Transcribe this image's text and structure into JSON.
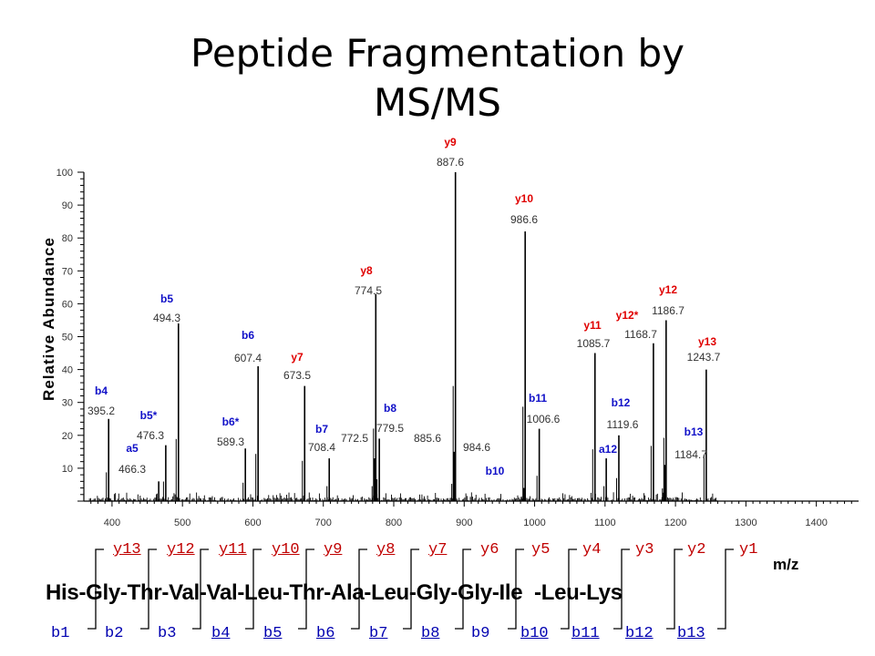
{
  "title_lines": [
    "Peptide Fragmentation by",
    "MS/MS"
  ],
  "colors": {
    "y_ion": "#e00000",
    "b_ion": "#1010c8",
    "a_ion": "#1010c8",
    "spectrum": "#000000"
  },
  "chart_data": {
    "type": "bar",
    "xlabel": "m/z",
    "ylabel": "Relative Abundance",
    "xlim": [
      360,
      1460
    ],
    "ylim": [
      0,
      100
    ],
    "xticks": [
      400,
      500,
      600,
      700,
      800,
      900,
      1000,
      1100,
      1200,
      1300,
      1400
    ],
    "yticks": [
      10,
      20,
      30,
      40,
      50,
      60,
      70,
      80,
      90,
      100
    ],
    "peaks": [
      {
        "mz": 395.2,
        "intensity": 25,
        "ion": "b4",
        "kind": "b",
        "mz_label": "395.2"
      },
      {
        "mz": 466.3,
        "intensity": 6,
        "ion": "a5",
        "kind": "a",
        "mz_label": "466.3"
      },
      {
        "mz": 476.3,
        "intensity": 17,
        "ion": "b5*",
        "kind": "b",
        "mz_label": "476.3"
      },
      {
        "mz": 494.3,
        "intensity": 54,
        "ion": "b5",
        "kind": "b",
        "mz_label": "494.3"
      },
      {
        "mz": 589.3,
        "intensity": 16,
        "ion": "b6*",
        "kind": "b",
        "mz_label": "589.3"
      },
      {
        "mz": 607.4,
        "intensity": 41,
        "ion": "b6",
        "kind": "b",
        "mz_label": "607.4"
      },
      {
        "mz": 673.5,
        "intensity": 35,
        "ion": "y7",
        "kind": "y",
        "mz_label": "673.5"
      },
      {
        "mz": 708.4,
        "intensity": 13,
        "ion": "b7",
        "kind": "b",
        "mz_label": "708.4"
      },
      {
        "mz": 772.5,
        "intensity": 13,
        "ion": "",
        "kind": "",
        "mz_label": "772.5"
      },
      {
        "mz": 774.5,
        "intensity": 63,
        "ion": "y8",
        "kind": "y",
        "mz_label": "774.5"
      },
      {
        "mz": 779.5,
        "intensity": 19,
        "ion": "b8",
        "kind": "b",
        "mz_label": "779.5"
      },
      {
        "mz": 885.6,
        "intensity": 15,
        "ion": "",
        "kind": "",
        "mz_label": "885.6"
      },
      {
        "mz": 887.6,
        "intensity": 100,
        "ion": "y9",
        "kind": "y",
        "mz_label": "887.6"
      },
      {
        "mz": 984.6,
        "intensity": 4,
        "ion": "b10",
        "kind": "b",
        "mz_label": "984.6"
      },
      {
        "mz": 986.6,
        "intensity": 82,
        "ion": "y10",
        "kind": "y",
        "mz_label": "986.6"
      },
      {
        "mz": 1006.6,
        "intensity": 22,
        "ion": "b11",
        "kind": "b",
        "mz_label": "1006.6"
      },
      {
        "mz": 1085.7,
        "intensity": 45,
        "ion": "y11",
        "kind": "y",
        "mz_label": "1085.7"
      },
      {
        "mz": 1101.7,
        "intensity": 13,
        "ion": "a12",
        "kind": "a",
        "mz_label": ""
      },
      {
        "mz": 1119.6,
        "intensity": 20,
        "ion": "b12",
        "kind": "b",
        "mz_label": "1119.6"
      },
      {
        "mz": 1168.7,
        "intensity": 48,
        "ion": "y12*",
        "kind": "y",
        "mz_label": "1168.7"
      },
      {
        "mz": 1184.7,
        "intensity": 11,
        "ion": "b13",
        "kind": "b",
        "mz_label": "1184.7"
      },
      {
        "mz": 1186.7,
        "intensity": 55,
        "ion": "y12",
        "kind": "y",
        "mz_label": "1186.7"
      },
      {
        "mz": 1243.7,
        "intensity": 40,
        "ion": "y13",
        "kind": "y",
        "mz_label": "1243.7"
      }
    ]
  },
  "sequence": "His-Gly-Thr-Val-Val-Leu-Thr-Ala-Leu-Gly-Gly-Ile  -Leu-Lys",
  "y_ions": [
    "y13",
    "y12",
    "y11",
    "y10",
    "y9",
    "y8",
    "y7",
    "y6",
    "y5",
    "y4",
    "y3",
    "y2",
    "y1"
  ],
  "y_observed": [
    true,
    true,
    true,
    true,
    true,
    true,
    true,
    false,
    false,
    false,
    false,
    false,
    false
  ],
  "b_ions": [
    "b1",
    "b2",
    "b3",
    "b4",
    "b5",
    "b6",
    "b7",
    "b8",
    "b9",
    "b10",
    "b11",
    "b12",
    "b13"
  ],
  "b_observed": [
    false,
    false,
    false,
    true,
    true,
    true,
    true,
    true,
    false,
    true,
    true,
    true,
    true
  ]
}
